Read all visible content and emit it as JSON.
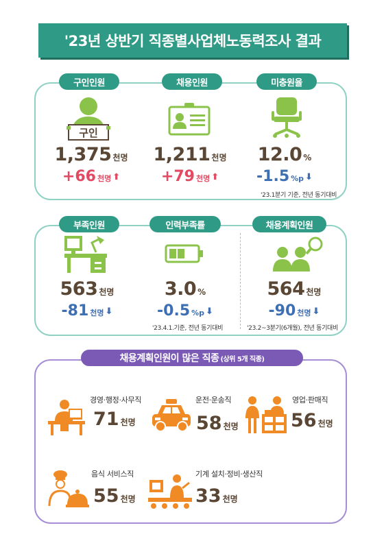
{
  "title": "'23년 상반기 직종별사업체노동력조사 결과",
  "colors": {
    "teal": "#2f9b86",
    "green_icon": "#8bc34a",
    "orange_icon": "#f08a24",
    "purple": "#7b5ab6",
    "increase": "#e24a64",
    "decrease": "#3e6fb3"
  },
  "panel1": {
    "stats": [
      {
        "label": "구인인원",
        "icon": "person-sign-icon",
        "sign_text": "구인",
        "value": "1,375",
        "unit": "천명",
        "delta": "+66",
        "delta_unit": "천명",
        "direction": "up"
      },
      {
        "label": "채용인원",
        "icon": "id-card-icon",
        "value": "1,211",
        "unit": "천명",
        "delta": "+79",
        "delta_unit": "천명",
        "direction": "up"
      },
      {
        "label": "미충원율",
        "icon": "office-chair-icon",
        "value": "12.0",
        "unit": "%",
        "delta": "-1.5",
        "delta_unit": "%p",
        "direction": "down"
      }
    ],
    "note": "'23.1분기 기준, 전년 동기대비"
  },
  "panel2": {
    "stats": [
      {
        "label": "부족인원",
        "icon": "desk-icon",
        "value": "563",
        "unit": "천명",
        "delta": "-81",
        "delta_unit": "천명",
        "direction": "down"
      },
      {
        "label": "인력부족률",
        "icon": "battery-icon",
        "value": "3.0",
        "unit": "%",
        "delta": "-0.5",
        "delta_unit": "%p",
        "direction": "down"
      },
      {
        "label": "채용계획인원",
        "icon": "people-search-icon",
        "value": "564",
        "unit": "천명",
        "delta": "-90",
        "delta_unit": "천명",
        "direction": "down"
      }
    ],
    "note_left": "'23.4.1.기준, 전년 동기대비",
    "note_right": "'23.2~3분기(6개월), 전년 동기대비"
  },
  "panel3": {
    "title": "채용계획인원이 많은 직종",
    "title_sub": "(상위 5개 직종)",
    "jobs": [
      {
        "label": "경영·행정·사무직",
        "icon": "office-worker-icon",
        "value": "71",
        "unit": "천명"
      },
      {
        "label": "운전·운송직",
        "icon": "taxi-icon",
        "value": "58",
        "unit": "천명"
      },
      {
        "label": "영업·판매직",
        "icon": "sales-counter-icon",
        "value": "56",
        "unit": "천명"
      },
      {
        "label": "음식 서비스직",
        "icon": "chef-icon",
        "value": "55",
        "unit": "천명"
      },
      {
        "label": "기계 설치·정비·생산직",
        "icon": "production-worker-icon",
        "value": "33",
        "unit": "천명"
      }
    ]
  },
  "arrows": {
    "up": "⬆",
    "down": "⬇"
  }
}
